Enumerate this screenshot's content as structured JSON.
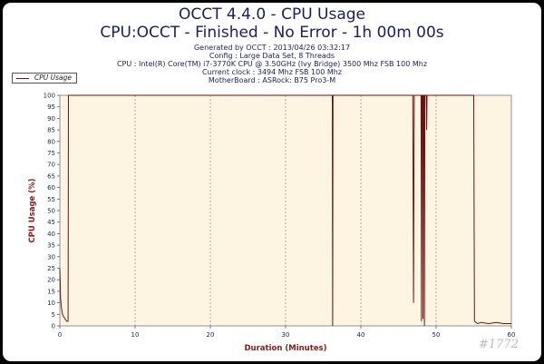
{
  "header": {
    "title": "OCCT 4.4.0 - CPU Usage",
    "subtitle": "CPU:OCCT - Finished - No Error - 1h 00m 00s",
    "info_lines": [
      "Generated by OCCT : 2013/04/26 03:32:17",
      "Config : Large Data Set, 8 Threads",
      "CPU : Intel(R) Core(TM) i7-3770K CPU @ 3.50GHz (Ivy Bridge) 3500 Mhz FSB 100 Mhz",
      "Current clock : 3494 Mhz FSB 100 Mhz",
      "MotherBoard : ASRock: B75 Pro3-M"
    ]
  },
  "watermark": "#1772",
  "colors": {
    "plot_bg": "#fdf5e1",
    "line": "#6b1212",
    "text": "#1a1f5a",
    "axis_label": "#8b1a1a"
  },
  "chart_data": {
    "type": "line",
    "xlabel": "Duration (Minutes)",
    "ylabel": "CPU Usage (%)",
    "xlim": [
      0,
      60
    ],
    "ylim": [
      0,
      100
    ],
    "x_ticks": [
      0,
      10,
      20,
      30,
      40,
      50,
      60
    ],
    "y_ticks": [
      0,
      5,
      10,
      15,
      20,
      25,
      30,
      35,
      40,
      45,
      50,
      55,
      60,
      65,
      70,
      75,
      80,
      85,
      90,
      95,
      100
    ],
    "grid": "vertical dashed at x ticks",
    "legend_position": "top-left",
    "series": [
      {
        "name": "CPU Usage",
        "x": [
          0,
          0.1,
          0.2,
          0.35,
          0.5,
          0.7,
          0.9,
          1.1,
          1.15,
          36.2,
          36.25,
          36.3,
          46.9,
          47.0,
          47.1,
          48.0,
          48.05,
          48.1,
          48.2,
          48.25,
          48.3,
          48.4,
          48.45,
          48.5,
          48.7,
          48.75,
          48.8,
          55.0,
          55.1,
          55.5,
          56,
          57,
          58,
          59,
          60
        ],
        "y": [
          25,
          12,
          8,
          5,
          4,
          3,
          2,
          2,
          100,
          100,
          0,
          100,
          100,
          10,
          100,
          100,
          2,
          100,
          100,
          3,
          100,
          100,
          0,
          100,
          100,
          85,
          100,
          100,
          2,
          1,
          1.5,
          1,
          1.5,
          1,
          1
        ]
      }
    ]
  }
}
